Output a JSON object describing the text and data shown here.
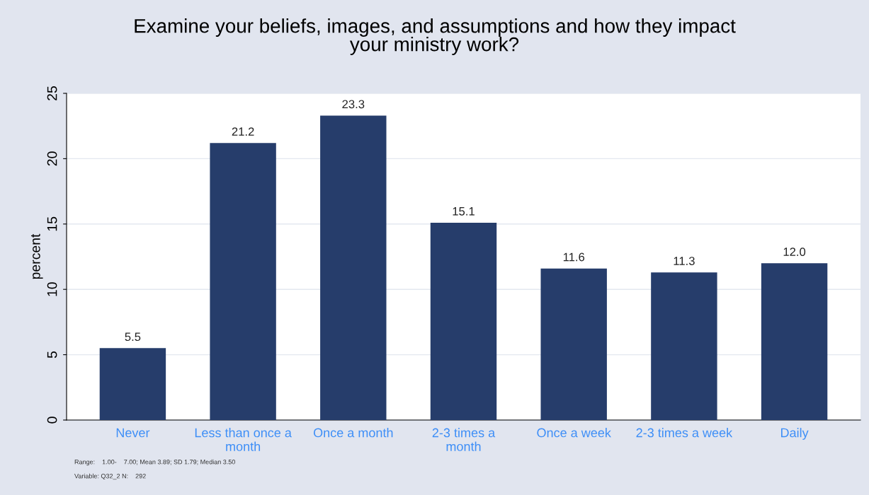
{
  "chart_data": {
    "type": "bar",
    "title": "Examine your beliefs, images, and assumptions and how they impact\nyour ministry work?",
    "ylabel": "percent",
    "categories": [
      "Never",
      "Less than once a\nmonth",
      "Once a month",
      "2-3 times a\nmonth",
      "Once a week",
      "2-3 times a week",
      "Daily"
    ],
    "values": [
      5.5,
      21.2,
      23.3,
      15.1,
      11.6,
      11.3,
      12.0
    ],
    "value_labels": [
      "5.5",
      "21.2",
      "23.3",
      "15.1",
      "11.6",
      "11.3",
      "12.0"
    ],
    "color": "#263d6b",
    "ylim": [
      0,
      25
    ],
    "yticks": [
      0,
      5,
      10,
      15,
      20,
      25
    ],
    "grid": "y",
    "annotations": [
      "Range:    1.00-    7.00; Mean 3.89; SD 1.79; Median 3.50",
      "Variable: Q32_2 N:    292"
    ]
  }
}
